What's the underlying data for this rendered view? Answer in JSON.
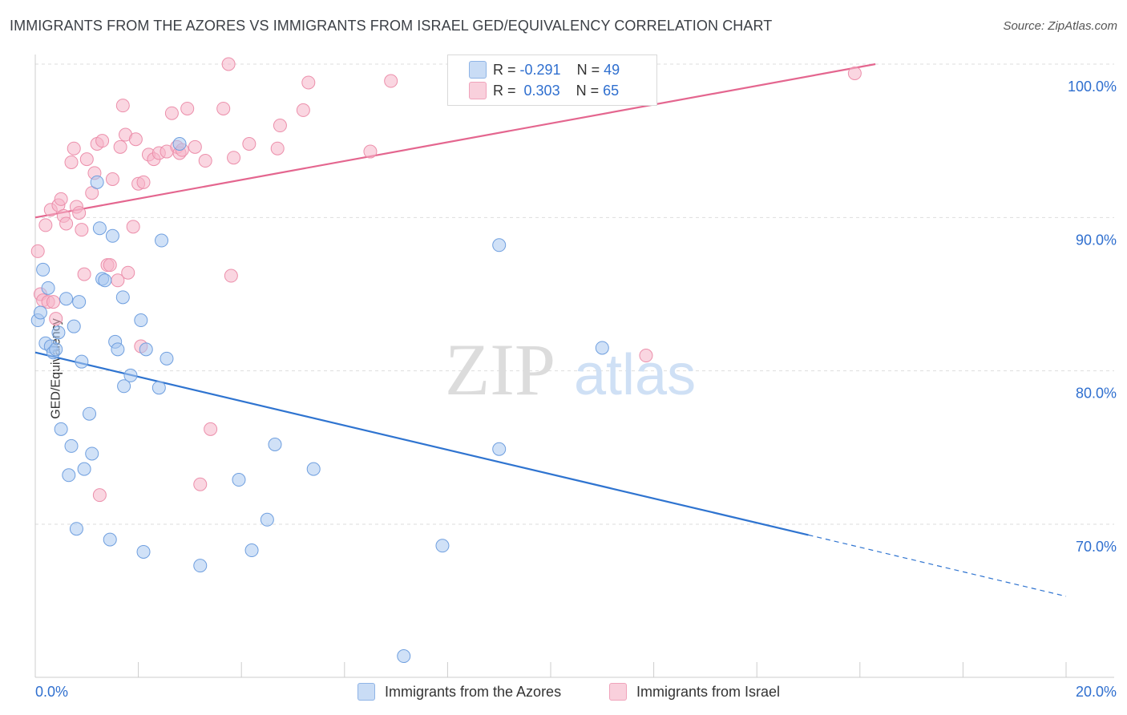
{
  "title": "IMMIGRANTS FROM THE AZORES VS IMMIGRANTS FROM ISRAEL GED/EQUIVALENCY CORRELATION CHART",
  "source": "Source: ZipAtlas.com",
  "watermark": {
    "part1": "ZIP",
    "part2": "atlas"
  },
  "legend": {
    "rows": [
      {
        "r_label": "R =",
        "r_value": "-0.291",
        "n_label": "N =",
        "n_value": "49",
        "color": "#aac8f0"
      },
      {
        "r_label": "R =",
        "r_value": "0.303",
        "n_label": "N =",
        "n_value": "65",
        "color": "#f5b5c8"
      }
    ]
  },
  "bottom_legend": [
    {
      "label": "Immigrants from the Azores",
      "color": "#aac8f0"
    },
    {
      "label": "Immigrants from Israel",
      "color": "#f5b5c8"
    }
  ],
  "colors": {
    "blue_fill": "#aac8f0",
    "blue_stroke": "#6f9fdf",
    "blue_line": "#2f74d0",
    "pink_fill": "#f5b5c8",
    "pink_stroke": "#ec8fab",
    "pink_line": "#e4668f",
    "tick_label": "#2f6fcf",
    "grid": "#dddddd"
  },
  "chart_data": {
    "type": "scatter",
    "title": "IMMIGRANTS FROM THE AZORES VS IMMIGRANTS FROM ISRAEL GED/EQUIVALENCY CORRELATION CHART",
    "xlabel": "",
    "ylabel": "GED/Equivalency",
    "xlim": [
      0,
      20
    ],
    "ylim": [
      60.5,
      101.5
    ],
    "x_tick_labels": [
      "0.0%",
      "20.0%"
    ],
    "y_ticks": [
      70,
      80,
      90,
      100
    ],
    "y_tick_labels": [
      "70.0%",
      "80.0%",
      "90.0%",
      "100.0%"
    ],
    "grid": true,
    "legend_position": "top-center",
    "series": [
      {
        "name": "Immigrants from the Azores",
        "color": "#aac8f0",
        "trend": {
          "x": [
            0,
            15
          ],
          "y": [
            81.2,
            69.3
          ],
          "dashed_extension_to": [
            20,
            65.3
          ]
        },
        "points": [
          [
            0.05,
            83.3
          ],
          [
            0.1,
            83.8
          ],
          [
            0.15,
            86.6
          ],
          [
            0.25,
            85.4
          ],
          [
            0.2,
            81.8
          ],
          [
            0.3,
            81.6
          ],
          [
            0.35,
            81.2
          ],
          [
            0.4,
            81.4
          ],
          [
            0.45,
            82.5
          ],
          [
            0.6,
            84.7
          ],
          [
            0.75,
            82.9
          ],
          [
            0.85,
            84.5
          ],
          [
            0.9,
            80.6
          ],
          [
            0.5,
            76.2
          ],
          [
            0.7,
            75.1
          ],
          [
            0.65,
            73.2
          ],
          [
            0.8,
            69.7
          ],
          [
            0.95,
            73.6
          ],
          [
            1.05,
            77.2
          ],
          [
            1.1,
            74.6
          ],
          [
            1.2,
            92.3
          ],
          [
            1.25,
            89.3
          ],
          [
            1.3,
            86.0
          ],
          [
            1.35,
            85.9
          ],
          [
            1.5,
            88.8
          ],
          [
            1.55,
            81.9
          ],
          [
            1.6,
            81.4
          ],
          [
            1.7,
            84.8
          ],
          [
            1.72,
            79.0
          ],
          [
            1.85,
            79.7
          ],
          [
            1.45,
            69.0
          ],
          [
            2.05,
            83.3
          ],
          [
            2.15,
            81.4
          ],
          [
            2.1,
            68.2
          ],
          [
            2.4,
            78.9
          ],
          [
            2.45,
            88.5
          ],
          [
            2.55,
            80.8
          ],
          [
            2.8,
            94.8
          ],
          [
            3.2,
            67.3
          ],
          [
            3.95,
            72.9
          ],
          [
            4.2,
            68.3
          ],
          [
            4.5,
            70.3
          ],
          [
            4.65,
            75.2
          ],
          [
            5.4,
            73.6
          ],
          [
            7.15,
            61.4
          ],
          [
            7.9,
            68.6
          ],
          [
            9.0,
            74.9
          ],
          [
            9.0,
            88.2
          ],
          [
            11.0,
            81.5
          ]
        ]
      },
      {
        "name": "Immigrants from Israel",
        "color": "#f5b5c8",
        "trend": {
          "x": [
            0,
            16.3
          ],
          "y": [
            90.0,
            100.0
          ]
        },
        "points": [
          [
            0.05,
            87.8
          ],
          [
            0.1,
            85.0
          ],
          [
            0.15,
            84.6
          ],
          [
            0.2,
            89.5
          ],
          [
            0.25,
            84.5
          ],
          [
            0.3,
            90.5
          ],
          [
            0.4,
            83.4
          ],
          [
            0.45,
            90.8
          ],
          [
            0.5,
            91.2
          ],
          [
            0.55,
            90.1
          ],
          [
            0.6,
            89.6
          ],
          [
            0.7,
            93.6
          ],
          [
            0.75,
            94.5
          ],
          [
            0.8,
            90.7
          ],
          [
            0.85,
            90.3
          ],
          [
            0.9,
            89.2
          ],
          [
            0.95,
            86.3
          ],
          [
            1.0,
            93.8
          ],
          [
            1.1,
            91.6
          ],
          [
            1.15,
            92.9
          ],
          [
            1.2,
            94.8
          ],
          [
            1.25,
            71.9
          ],
          [
            1.3,
            95.0
          ],
          [
            1.4,
            86.9
          ],
          [
            1.45,
            86.9
          ],
          [
            1.5,
            92.5
          ],
          [
            1.6,
            85.9
          ],
          [
            1.65,
            94.6
          ],
          [
            1.7,
            97.3
          ],
          [
            1.75,
            95.4
          ],
          [
            1.8,
            86.4
          ],
          [
            1.9,
            89.4
          ],
          [
            1.95,
            95.1
          ],
          [
            2.0,
            92.2
          ],
          [
            2.05,
            81.6
          ],
          [
            2.1,
            92.3
          ],
          [
            2.2,
            94.1
          ],
          [
            2.3,
            93.8
          ],
          [
            2.4,
            94.2
          ],
          [
            2.55,
            94.3
          ],
          [
            2.65,
            96.8
          ],
          [
            2.75,
            94.6
          ],
          [
            2.8,
            94.2
          ],
          [
            2.85,
            94.4
          ],
          [
            2.95,
            97.1
          ],
          [
            3.1,
            94.6
          ],
          [
            3.2,
            72.6
          ],
          [
            3.3,
            93.7
          ],
          [
            3.4,
            76.2
          ],
          [
            3.65,
            97.1
          ],
          [
            3.75,
            100.0
          ],
          [
            3.8,
            86.2
          ],
          [
            3.85,
            93.9
          ],
          [
            4.15,
            94.8
          ],
          [
            4.7,
            94.5
          ],
          [
            4.75,
            96.0
          ],
          [
            5.2,
            97.0
          ],
          [
            5.3,
            98.8
          ],
          [
            6.5,
            94.3
          ],
          [
            6.9,
            98.9
          ],
          [
            9.0,
            99.9
          ],
          [
            11.1,
            100.0
          ],
          [
            11.85,
            81.0
          ],
          [
            15.9,
            99.4
          ],
          [
            0.35,
            84.5
          ]
        ]
      }
    ]
  }
}
